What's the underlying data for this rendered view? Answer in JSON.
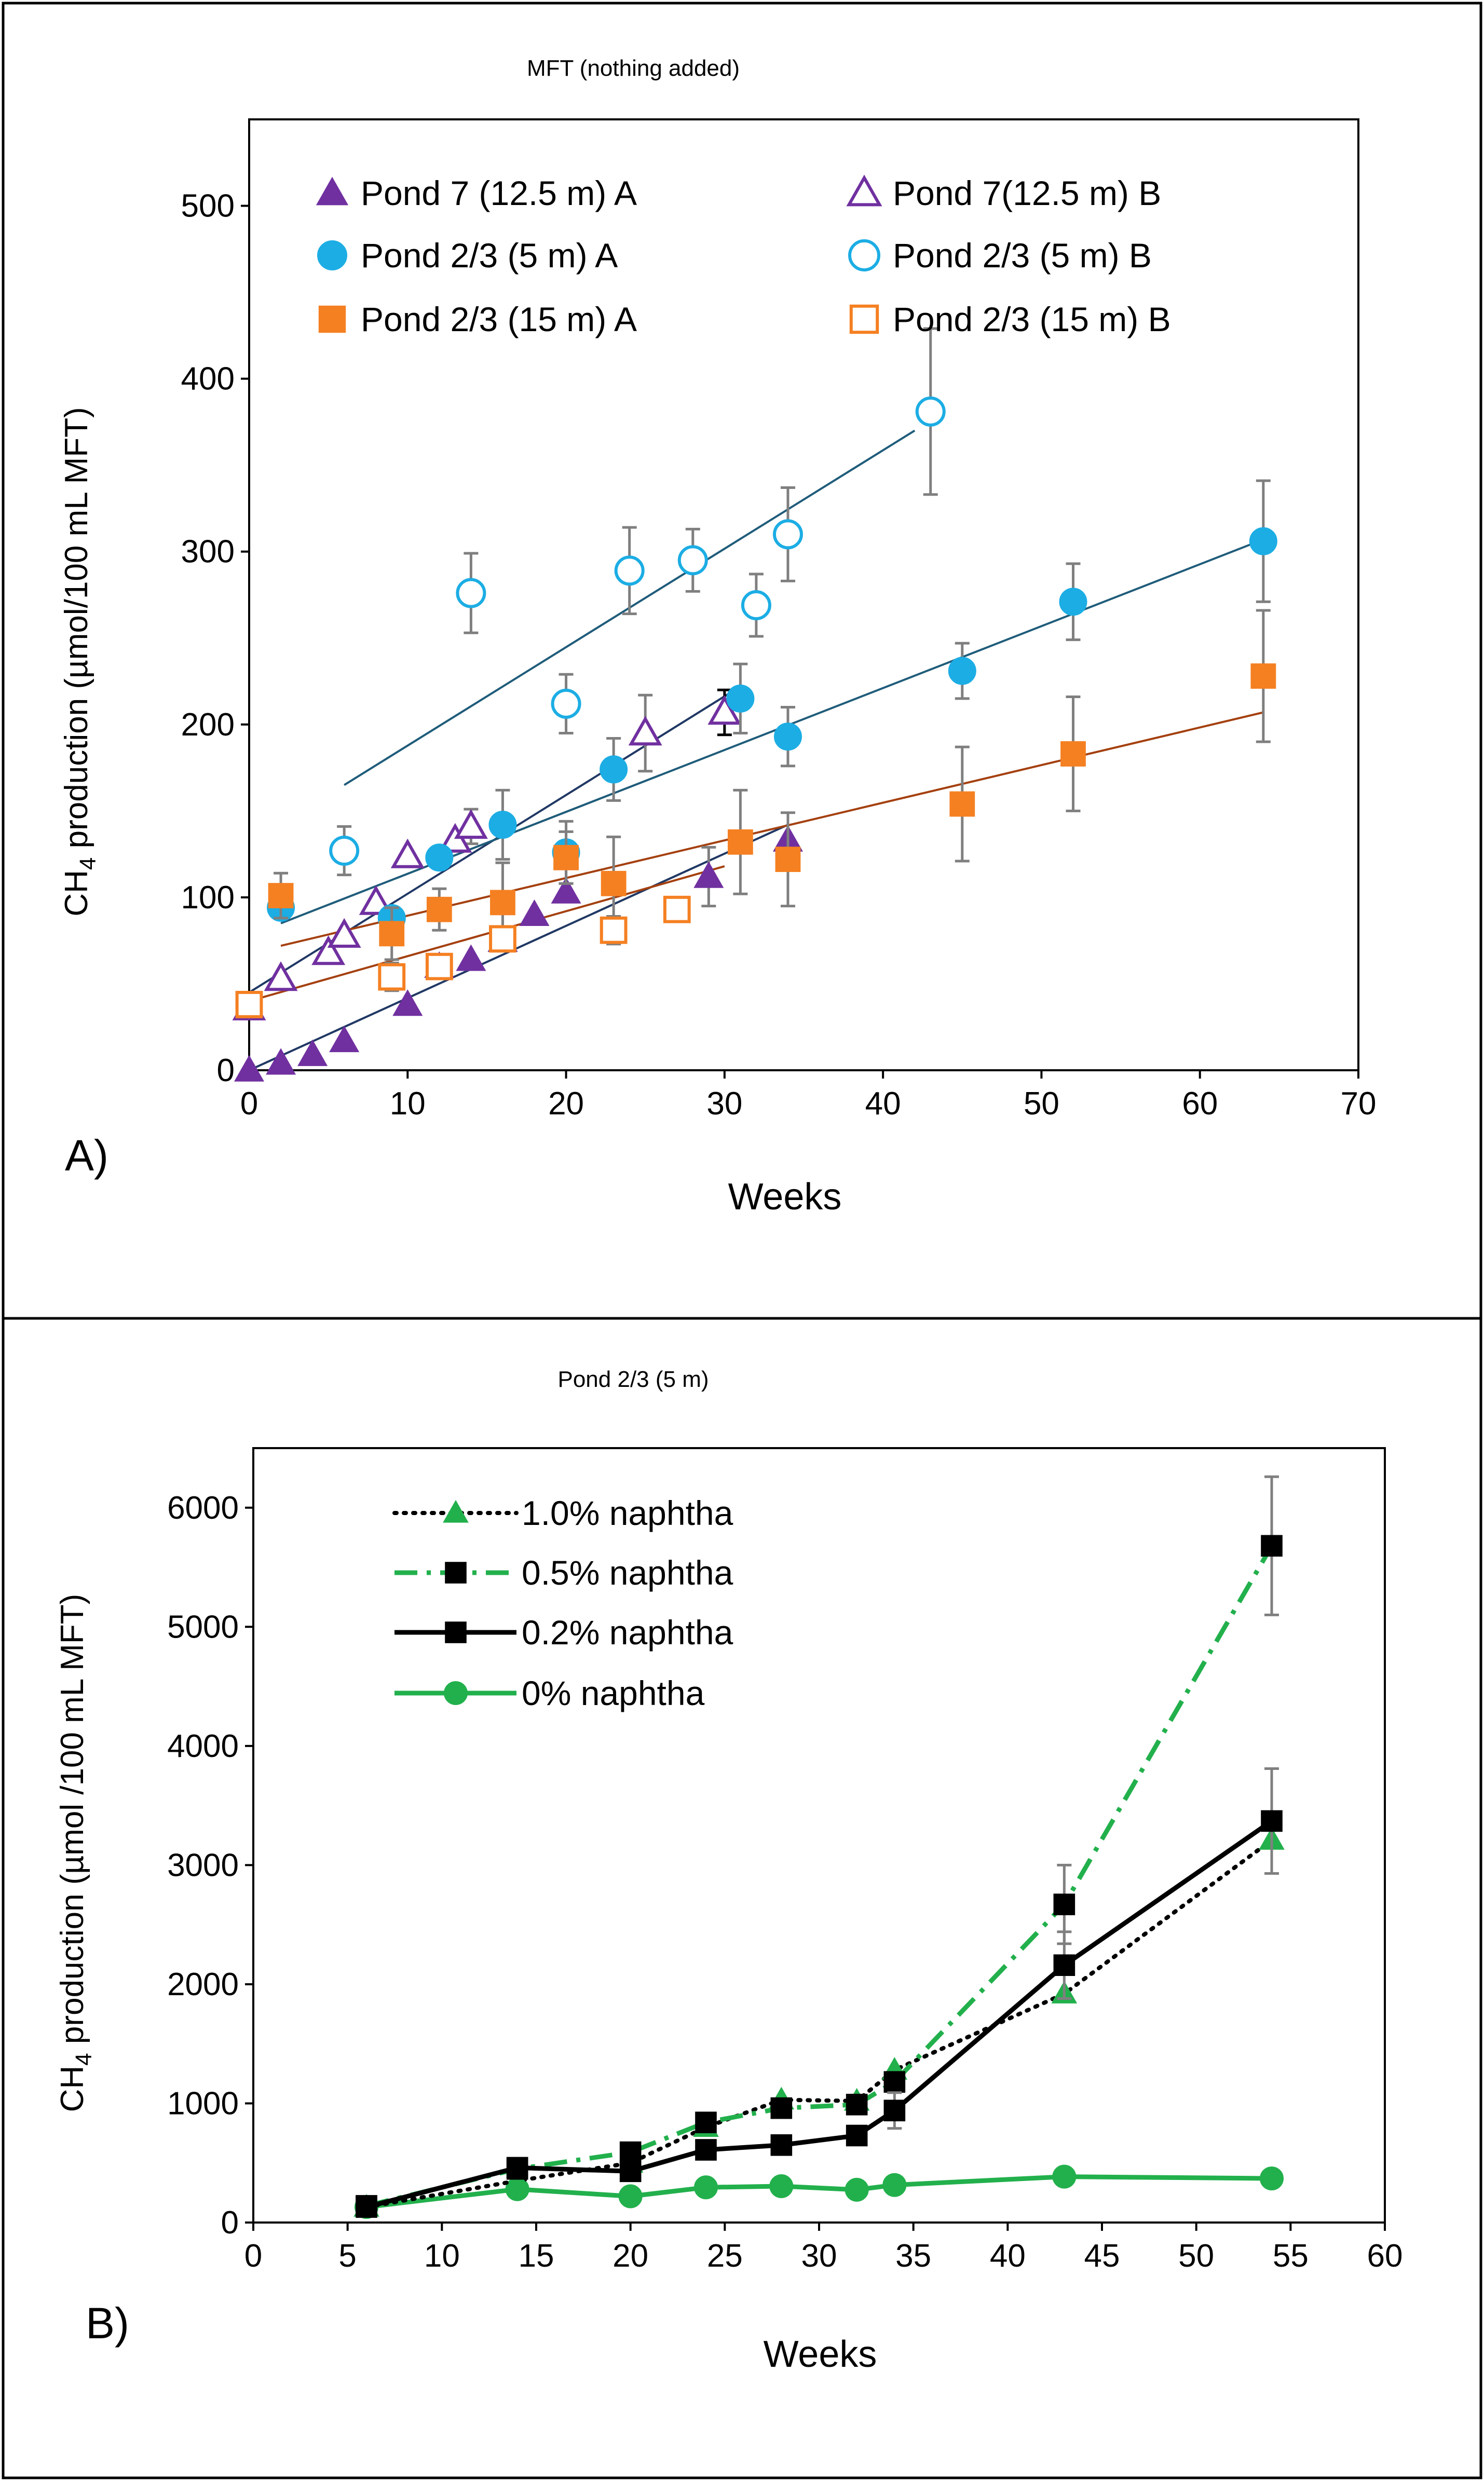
{
  "chart_data": [
    {
      "panel_label": "A)",
      "type": "scatter",
      "title": "MFT (nothing added)",
      "xlabel": "Weeks",
      "ylabel_prefix": "CH",
      "ylabel_subscript": "4",
      "ylabel_suffix": " production (µmol/100 mL MFT)",
      "xlim": [
        0,
        70
      ],
      "ylim": [
        0,
        550
      ],
      "xticks": [
        0,
        10,
        20,
        30,
        40,
        50,
        60,
        70
      ],
      "yticks": [
        0,
        100,
        200,
        300,
        400,
        500
      ],
      "series": [
        {
          "name": "Pond 7 (12.5 m) A",
          "color": "#7030a0",
          "marker": "triangle",
          "filled": true,
          "x": [
            0,
            2,
            4,
            6,
            10,
            12,
            14,
            16,
            18,
            20,
            29,
            34
          ],
          "y": [
            0,
            4,
            9,
            17,
            38,
            60,
            64,
            75,
            90,
            103,
            112,
            133
          ],
          "err": [
            0,
            0,
            0,
            0,
            0,
            0,
            0,
            0,
            0,
            0,
            17,
            0
          ],
          "fit": [
            [
              0,
              0
            ],
            [
              34,
              142
            ]
          ],
          "fit_color": "#203864"
        },
        {
          "name": "Pond 7(12.5 m) B",
          "color": "#7030a0",
          "marker": "triangle",
          "filled": false,
          "x": [
            0,
            2,
            5,
            6,
            8,
            10,
            13,
            14,
            25,
            30
          ],
          "y": [
            36,
            53,
            68,
            78,
            97,
            124,
            133,
            141,
            195,
            207
          ],
          "err": [
            0,
            0,
            0,
            0,
            0,
            0,
            0,
            10,
            22,
            13
          ],
          "fit": [
            [
              0,
              45
            ],
            [
              31,
              222
            ]
          ],
          "fit_color": "#203864"
        },
        {
          "name": "Pond 2/3 (5 m) A",
          "color": "#1cade4",
          "marker": "circle",
          "filled": true,
          "x": [
            2,
            9,
            12,
            16,
            20,
            23,
            31,
            34,
            45,
            52,
            64
          ],
          "y": [
            94,
            88,
            123,
            142,
            126,
            174,
            215,
            193,
            231,
            271,
            306
          ],
          "err": [
            0,
            0,
            0,
            20,
            18,
            18,
            20,
            17,
            16,
            22,
            35
          ],
          "fit": [
            [
              2,
              85
            ],
            [
              64,
              307
            ]
          ],
          "fit_color": "#1f5c7a"
        },
        {
          "name": "Pond 2/3 (5 m) B",
          "color": "#1cade4",
          "marker": "circle",
          "filled": false,
          "x": [
            6,
            14,
            20,
            24,
            28,
            32,
            34,
            43
          ],
          "y": [
            127,
            276,
            212,
            289,
            295,
            269,
            310,
            381
          ],
          "err": [
            14,
            23,
            17,
            25,
            18,
            18,
            27,
            48
          ],
          "fit": [
            [
              6,
              165
            ],
            [
              42,
              370
            ]
          ],
          "fit_color": "#1f5c7a"
        },
        {
          "name": "Pond 2/3 (15 m) A",
          "color": "#f58022",
          "marker": "square",
          "filled": true,
          "x": [
            2,
            9,
            12,
            16,
            20,
            23,
            31,
            34,
            45,
            52,
            64
          ],
          "y": [
            101,
            79,
            93,
            97,
            123,
            108,
            132,
            122,
            154,
            183,
            228
          ],
          "err": [
            13,
            15,
            12,
            23,
            15,
            27,
            30,
            27,
            33,
            33,
            38
          ],
          "fit": [
            [
              2,
              72
            ],
            [
              64,
              207
            ]
          ],
          "fit_color": "#a4400f"
        },
        {
          "name": "Pond 2/3 (15 m) B",
          "color": "#f58022",
          "marker": "square",
          "filled": false,
          "x": [
            0,
            9,
            12,
            16,
            23,
            27
          ],
          "y": [
            38,
            54,
            60,
            76,
            81,
            93
          ],
          "err": [
            0,
            8,
            5,
            5,
            8,
            7
          ],
          "fit": [
            [
              0,
              40
            ],
            [
              30,
              118
            ]
          ],
          "fit_color": "#a4400f"
        }
      ],
      "legend": {
        "placement": "top",
        "columns": 2
      }
    },
    {
      "panel_label": "B)",
      "type": "line",
      "title": "Pond 2/3 (5 m)",
      "xlabel": "Weeks",
      "ylabel_prefix": "CH",
      "ylabel_subscript": "4",
      "ylabel_suffix": " production (µmol /100 mL MFT)",
      "xlim": [
        0,
        60
      ],
      "ylim": [
        0,
        6500
      ],
      "xticks": [
        0,
        5,
        10,
        15,
        20,
        25,
        30,
        35,
        40,
        45,
        50,
        55,
        60
      ],
      "yticks": [
        0,
        1000,
        2000,
        3000,
        4000,
        5000,
        6000
      ],
      "series": [
        {
          "name": "1.0% naphtha",
          "line_color": "#000000",
          "dash": "dotted",
          "marker": "triangle",
          "marker_color": "#22b04c",
          "x": [
            6,
            14,
            20,
            24,
            28,
            32,
            34,
            43,
            54
          ],
          "y": [
            130,
            350,
            500,
            800,
            1030,
            1020,
            1280,
            1920,
            3210
          ],
          "err": [
            0,
            0,
            0,
            0,
            0,
            0,
            0,
            0,
            0
          ]
        },
        {
          "name": "0.5% naphtha",
          "line_color": "#22b04c",
          "dash": "dashdot",
          "marker": "square",
          "marker_color": "#000000",
          "x": [
            6,
            14,
            20,
            24,
            28,
            32,
            34,
            43,
            54
          ],
          "y": [
            140,
            450,
            590,
            840,
            960,
            990,
            1180,
            2670,
            5680
          ],
          "err": [
            0,
            0,
            0,
            0,
            0,
            0,
            0,
            330,
            580
          ]
        },
        {
          "name": "0.2% naphtha",
          "line_color": "#000000",
          "dash": "solid",
          "marker": "square",
          "marker_color": "#000000",
          "x": [
            6,
            14,
            20,
            24,
            28,
            32,
            34,
            43,
            54
          ],
          "y": [
            130,
            460,
            430,
            610,
            650,
            730,
            940,
            2160,
            3370
          ],
          "err": [
            0,
            0,
            0,
            0,
            0,
            0,
            150,
            280,
            440
          ]
        },
        {
          "name": "0% naphtha",
          "line_color": "#22b04c",
          "dash": "solid",
          "marker": "circle",
          "marker_color": "#22b04c",
          "x": [
            6,
            14,
            20,
            24,
            28,
            32,
            34,
            43,
            54
          ],
          "y": [
            130,
            280,
            220,
            295,
            305,
            275,
            315,
            385,
            370
          ],
          "err": [
            0,
            0,
            0,
            0,
            0,
            0,
            0,
            0,
            0
          ]
        }
      ],
      "legend": {
        "placement": "top-left",
        "columns": 1
      }
    }
  ]
}
